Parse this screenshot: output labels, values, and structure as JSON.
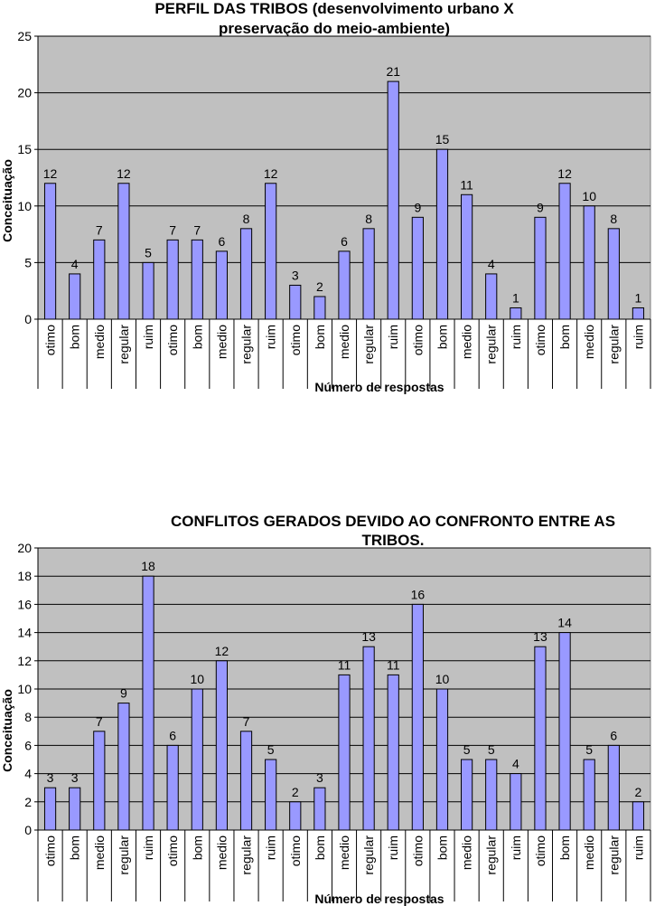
{
  "chart_data": [
    {
      "type": "bar",
      "title_lines": [
        "PERFIL DAS TRIBOS (desenvolvimento urbano X",
        "preservação do meio-ambiente)"
      ],
      "xlabel": "Número de respostas",
      "ylabel": "Conceituação",
      "ylim": [
        0,
        25
      ],
      "yticks": [
        0,
        5,
        10,
        15,
        20,
        25
      ],
      "categories": [
        "otimo",
        "bom",
        "medio",
        "regular",
        "ruim",
        "otimo",
        "bom",
        "medio",
        "regular",
        "ruim",
        "otimo",
        "bom",
        "medio",
        "regular",
        "ruim",
        "otimo",
        "bom",
        "medio",
        "regular",
        "ruim",
        "otimo",
        "bom",
        "medio",
        "regular",
        "ruim"
      ],
      "values": [
        12,
        4,
        7,
        12,
        5,
        7,
        7,
        6,
        8,
        12,
        3,
        2,
        6,
        8,
        21,
        9,
        15,
        11,
        4,
        1,
        9,
        12,
        10,
        8,
        1
      ],
      "grid": true,
      "bar_color": "#9999ff",
      "plot_bg": "#c0c0c0"
    },
    {
      "type": "bar",
      "title_lines": [
        "CONFLITOS GERADOS DEVIDO AO CONFRONTO ENTRE AS",
        "TRIBOS."
      ],
      "xlabel": "Número de respostas",
      "ylabel": "Conceituação",
      "ylim": [
        0,
        20
      ],
      "yticks": [
        0,
        2,
        4,
        6,
        8,
        10,
        12,
        14,
        16,
        18,
        20
      ],
      "categories": [
        "otimo",
        "bom",
        "medio",
        "regular",
        "ruim",
        "otimo",
        "bom",
        "medio",
        "regular",
        "ruim",
        "otimo",
        "bom",
        "medio",
        "regular",
        "ruim",
        "otimo",
        "bom",
        "medio",
        "regular",
        "ruim",
        "otimo",
        "bom",
        "medio",
        "regular",
        "ruim"
      ],
      "values": [
        3,
        3,
        7,
        9,
        18,
        6,
        10,
        12,
        7,
        5,
        2,
        3,
        11,
        13,
        11,
        16,
        10,
        5,
        5,
        4,
        13,
        14,
        5,
        6,
        2
      ],
      "grid": true,
      "bar_color": "#9999ff",
      "plot_bg": "#c0c0c0"
    }
  ]
}
